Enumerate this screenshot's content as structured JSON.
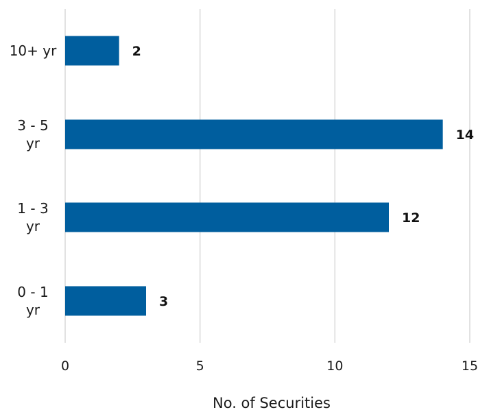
{
  "chart_data": {
    "type": "bar",
    "orientation": "horizontal",
    "categories": [
      "10+ yr",
      "3 - 5 yr",
      "1 - 3 yr",
      "0 - 1 yr"
    ],
    "category_lines": [
      [
        "10+ yr"
      ],
      [
        "3 - 5",
        "yr"
      ],
      [
        "1 - 3",
        "yr"
      ],
      [
        "0 - 1",
        "yr"
      ]
    ],
    "values": [
      2,
      14,
      12,
      3
    ],
    "data_labels": [
      "2",
      "14",
      "12",
      "3"
    ],
    "xlim": [
      0,
      15
    ],
    "x_ticks": [
      "0",
      "5",
      "10",
      "15"
    ],
    "xlabel": "No. of Securities",
    "ylabel": "",
    "title": "",
    "grid": "vertical",
    "legend": "none",
    "colors": {
      "bar": "#005e9e",
      "gridline": "#d9d9d9",
      "text": "#1a1a1a"
    }
  }
}
